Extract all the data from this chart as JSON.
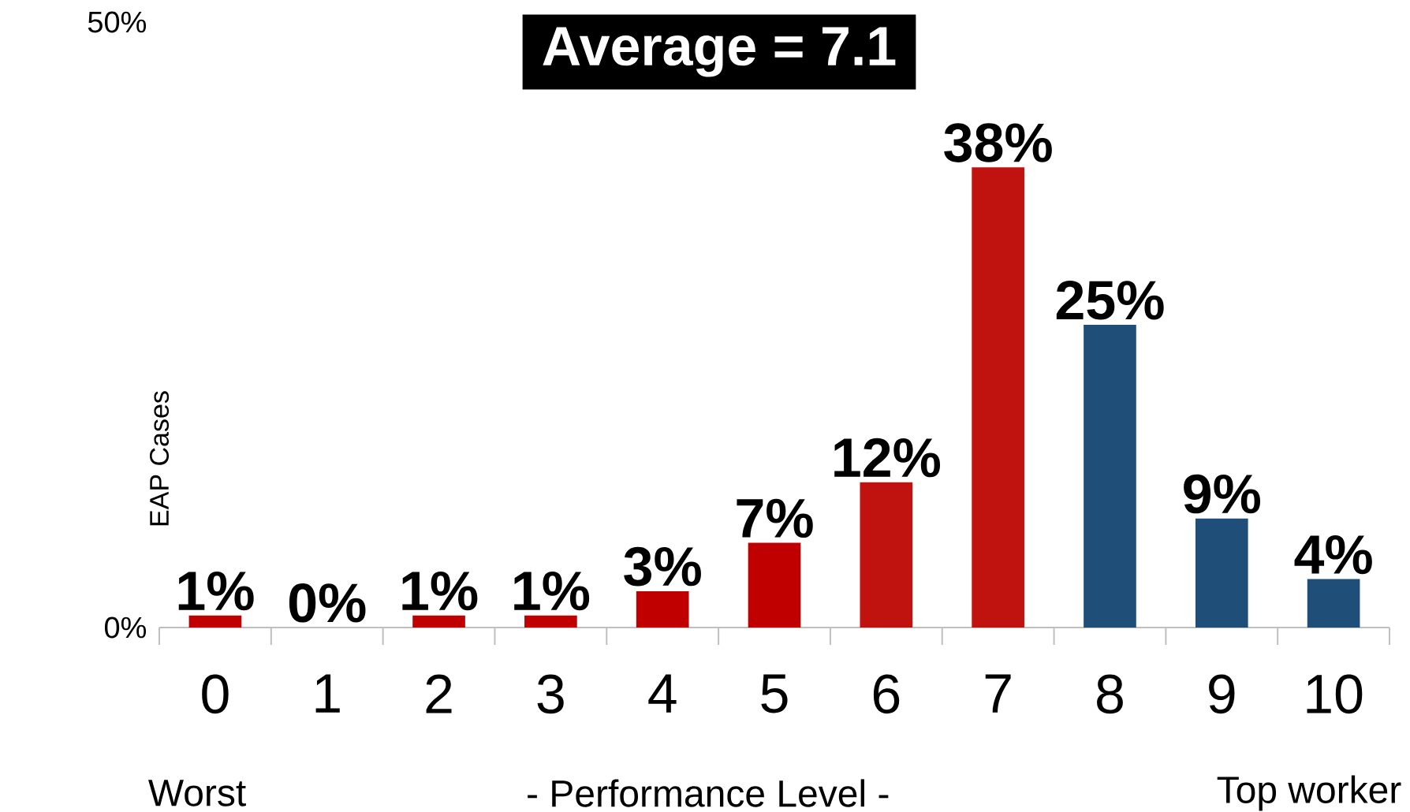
{
  "chart_data": {
    "type": "bar",
    "xlabel": "- Performance Level -",
    "ylabel": "EAP Cases",
    "categories": [
      "0",
      "1",
      "2",
      "3",
      "4",
      "5",
      "6",
      "7",
      "8",
      "9",
      "10"
    ],
    "values": [
      1,
      0,
      1,
      1,
      3,
      7,
      12,
      38,
      25,
      9,
      4
    ],
    "value_labels": [
      "1%",
      "0%",
      "1%",
      "1%",
      "3%",
      "7%",
      "12%",
      "38%",
      "25%",
      "9%",
      "4%"
    ],
    "colors": [
      "#c00000",
      "#c00000",
      "#c00000",
      "#c00000",
      "#c00000",
      "#c00000",
      "#c0120e",
      "#c0120e",
      "#1f4e79",
      "#1f4e79",
      "#1f4e79"
    ],
    "ylim": [
      0,
      50
    ],
    "yticks": [
      {
        "value": 0,
        "label": "0%"
      },
      {
        "value": 50,
        "label": "50%"
      }
    ],
    "annotations": [
      "Average = 7.1",
      "Worst",
      "Top worker"
    ]
  }
}
